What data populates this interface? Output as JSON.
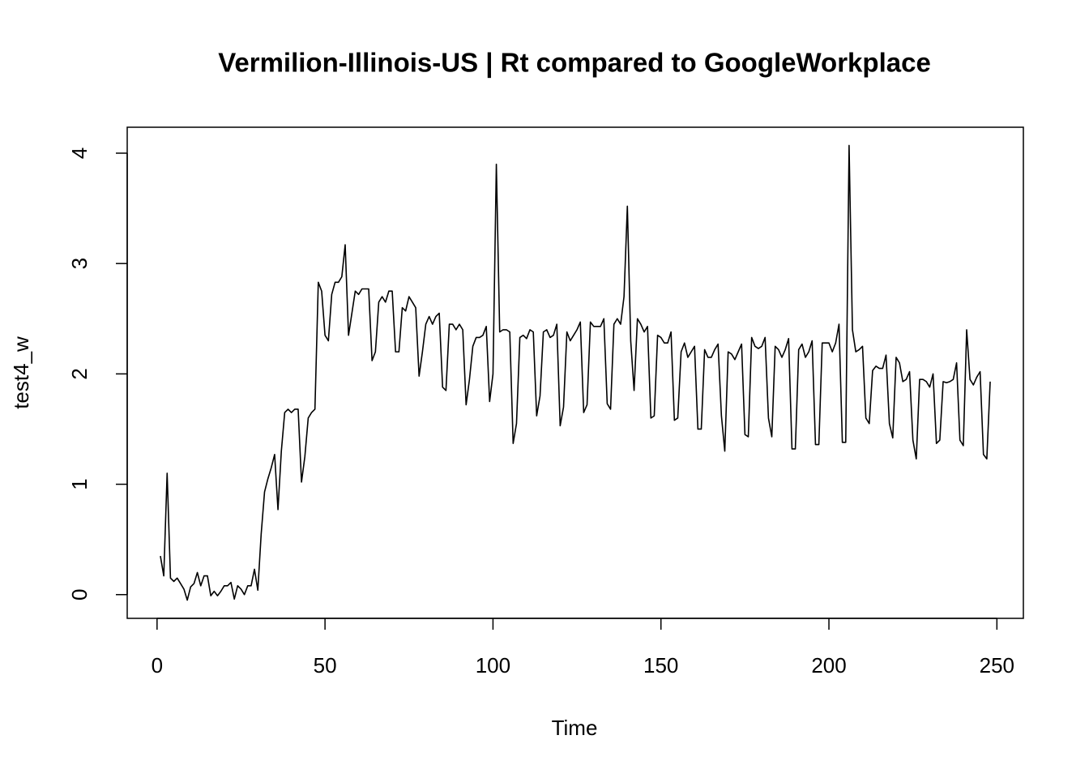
{
  "chart_data": {
    "type": "line",
    "title": "Vermilion-Illinois-US | Rt compared to GoogleWorkplace",
    "xlabel": "Time",
    "ylabel": "test4_w",
    "color": "#000000",
    "xlim": [
      -8.88,
      257.88
    ],
    "ylim": [
      -0.215,
      4.235
    ],
    "xticks": [
      0,
      50,
      100,
      150,
      200,
      250
    ],
    "yticks": [
      0,
      1,
      2,
      3,
      4
    ],
    "x": [
      1,
      2,
      3,
      4,
      5,
      6,
      7,
      8,
      9,
      10,
      11,
      12,
      13,
      14,
      15,
      16,
      17,
      18,
      19,
      20,
      21,
      22,
      23,
      24,
      25,
      26,
      27,
      28,
      29,
      30,
      31,
      32,
      33,
      34,
      35,
      36,
      37,
      38,
      39,
      40,
      41,
      42,
      43,
      44,
      45,
      46,
      47,
      48,
      49,
      50,
      51,
      52,
      53,
      54,
      55,
      56,
      57,
      58,
      59,
      60,
      61,
      62,
      63,
      64,
      65,
      66,
      67,
      68,
      69,
      70,
      71,
      72,
      73,
      74,
      75,
      76,
      77,
      78,
      79,
      80,
      81,
      82,
      83,
      84,
      85,
      86,
      87,
      88,
      89,
      90,
      91,
      92,
      93,
      94,
      95,
      96,
      97,
      98,
      99,
      100,
      101,
      102,
      103,
      104,
      105,
      106,
      107,
      108,
      109,
      110,
      111,
      112,
      113,
      114,
      115,
      116,
      117,
      118,
      119,
      120,
      121,
      122,
      123,
      124,
      125,
      126,
      127,
      128,
      129,
      130,
      131,
      132,
      133,
      134,
      135,
      136,
      137,
      138,
      139,
      140,
      141,
      142,
      143,
      144,
      145,
      146,
      147,
      148,
      149,
      150,
      151,
      152,
      153,
      154,
      155,
      156,
      157,
      158,
      159,
      160,
      161,
      162,
      163,
      164,
      165,
      166,
      167,
      168,
      169,
      170,
      171,
      172,
      173,
      174,
      175,
      176,
      177,
      178,
      179,
      180,
      181,
      182,
      183,
      184,
      185,
      186,
      187,
      188,
      189,
      190,
      191,
      192,
      193,
      194,
      195,
      196,
      197,
      198,
      199,
      200,
      201,
      202,
      203,
      204,
      205,
      206,
      207,
      208,
      209,
      210,
      211,
      212,
      213,
      214,
      215,
      216,
      217,
      218,
      219,
      220,
      221,
      222,
      223,
      224,
      225,
      226,
      227,
      228,
      229,
      230,
      231,
      232,
      233,
      234,
      235,
      236,
      237,
      238,
      239,
      240,
      241,
      242,
      243,
      244,
      245,
      246,
      247,
      248
    ],
    "values": [
      0.35,
      0.17,
      1.1,
      0.15,
      0.12,
      0.15,
      0.1,
      0.05,
      -0.05,
      0.07,
      0.1,
      0.2,
      0.08,
      0.17,
      0.17,
      -0.01,
      0.03,
      -0.01,
      0.03,
      0.08,
      0.08,
      0.11,
      -0.04,
      0.08,
      0.05,
      0,
      0.08,
      0.08,
      0.23,
      0.04,
      0.55,
      0.93,
      1.05,
      1.15,
      1.27,
      0.77,
      1.3,
      1.65,
      1.68,
      1.65,
      1.68,
      1.68,
      1.02,
      1.25,
      1.6,
      1.65,
      1.68,
      2.83,
      2.75,
      2.35,
      2.3,
      2.72,
      2.83,
      2.83,
      2.88,
      3.17,
      2.35,
      2.55,
      2.75,
      2.72,
      2.77,
      2.77,
      2.77,
      2.12,
      2.2,
      2.65,
      2.7,
      2.65,
      2.75,
      2.75,
      2.2,
      2.2,
      2.6,
      2.57,
      2.7,
      2.65,
      2.6,
      1.98,
      2.2,
      2.45,
      2.52,
      2.45,
      2.52,
      2.55,
      1.88,
      1.85,
      2.45,
      2.45,
      2.4,
      2.45,
      2.4,
      1.72,
      1.95,
      2.25,
      2.33,
      2.33,
      2.35,
      2.43,
      1.75,
      2.0,
      3.9,
      2.38,
      2.4,
      2.4,
      2.38,
      1.37,
      1.55,
      2.33,
      2.35,
      2.32,
      2.4,
      2.38,
      1.62,
      1.8,
      2.38,
      2.4,
      2.33,
      2.35,
      2.45,
      1.53,
      1.7,
      2.38,
      2.3,
      2.35,
      2.4,
      2.47,
      1.65,
      1.72,
      2.47,
      2.43,
      2.43,
      2.43,
      2.5,
      1.73,
      1.68,
      2.45,
      2.5,
      2.45,
      2.7,
      3.52,
      2.3,
      1.85,
      2.5,
      2.45,
      2.38,
      2.43,
      1.6,
      1.62,
      2.35,
      2.33,
      2.28,
      2.28,
      2.38,
      1.58,
      1.6,
      2.2,
      2.28,
      2.15,
      2.2,
      2.25,
      1.5,
      1.5,
      2.22,
      2.15,
      2.15,
      2.22,
      2.27,
      1.62,
      1.3,
      2.2,
      2.18,
      2.13,
      2.2,
      2.27,
      1.45,
      1.43,
      2.33,
      2.25,
      2.23,
      2.25,
      2.33,
      1.6,
      1.43,
      2.25,
      2.22,
      2.15,
      2.22,
      2.32,
      1.32,
      1.32,
      2.22,
      2.27,
      2.15,
      2.2,
      2.3,
      1.36,
      1.36,
      2.28,
      2.28,
      2.28,
      2.2,
      2.28,
      2.45,
      1.38,
      1.38,
      4.07,
      2.4,
      2.2,
      2.22,
      2.25,
      1.6,
      1.55,
      2.03,
      2.07,
      2.05,
      2.05,
      2.17,
      1.55,
      1.42,
      2.15,
      2.1,
      1.93,
      1.95,
      2.02,
      1.4,
      1.23,
      1.95,
      1.95,
      1.93,
      1.88,
      2.0,
      1.37,
      1.4,
      1.93,
      1.92,
      1.93,
      1.95,
      2.1,
      1.4,
      1.35,
      2.4,
      1.95,
      1.9,
      1.97,
      2.02,
      1.27,
      1.23,
      1.93
    ]
  }
}
